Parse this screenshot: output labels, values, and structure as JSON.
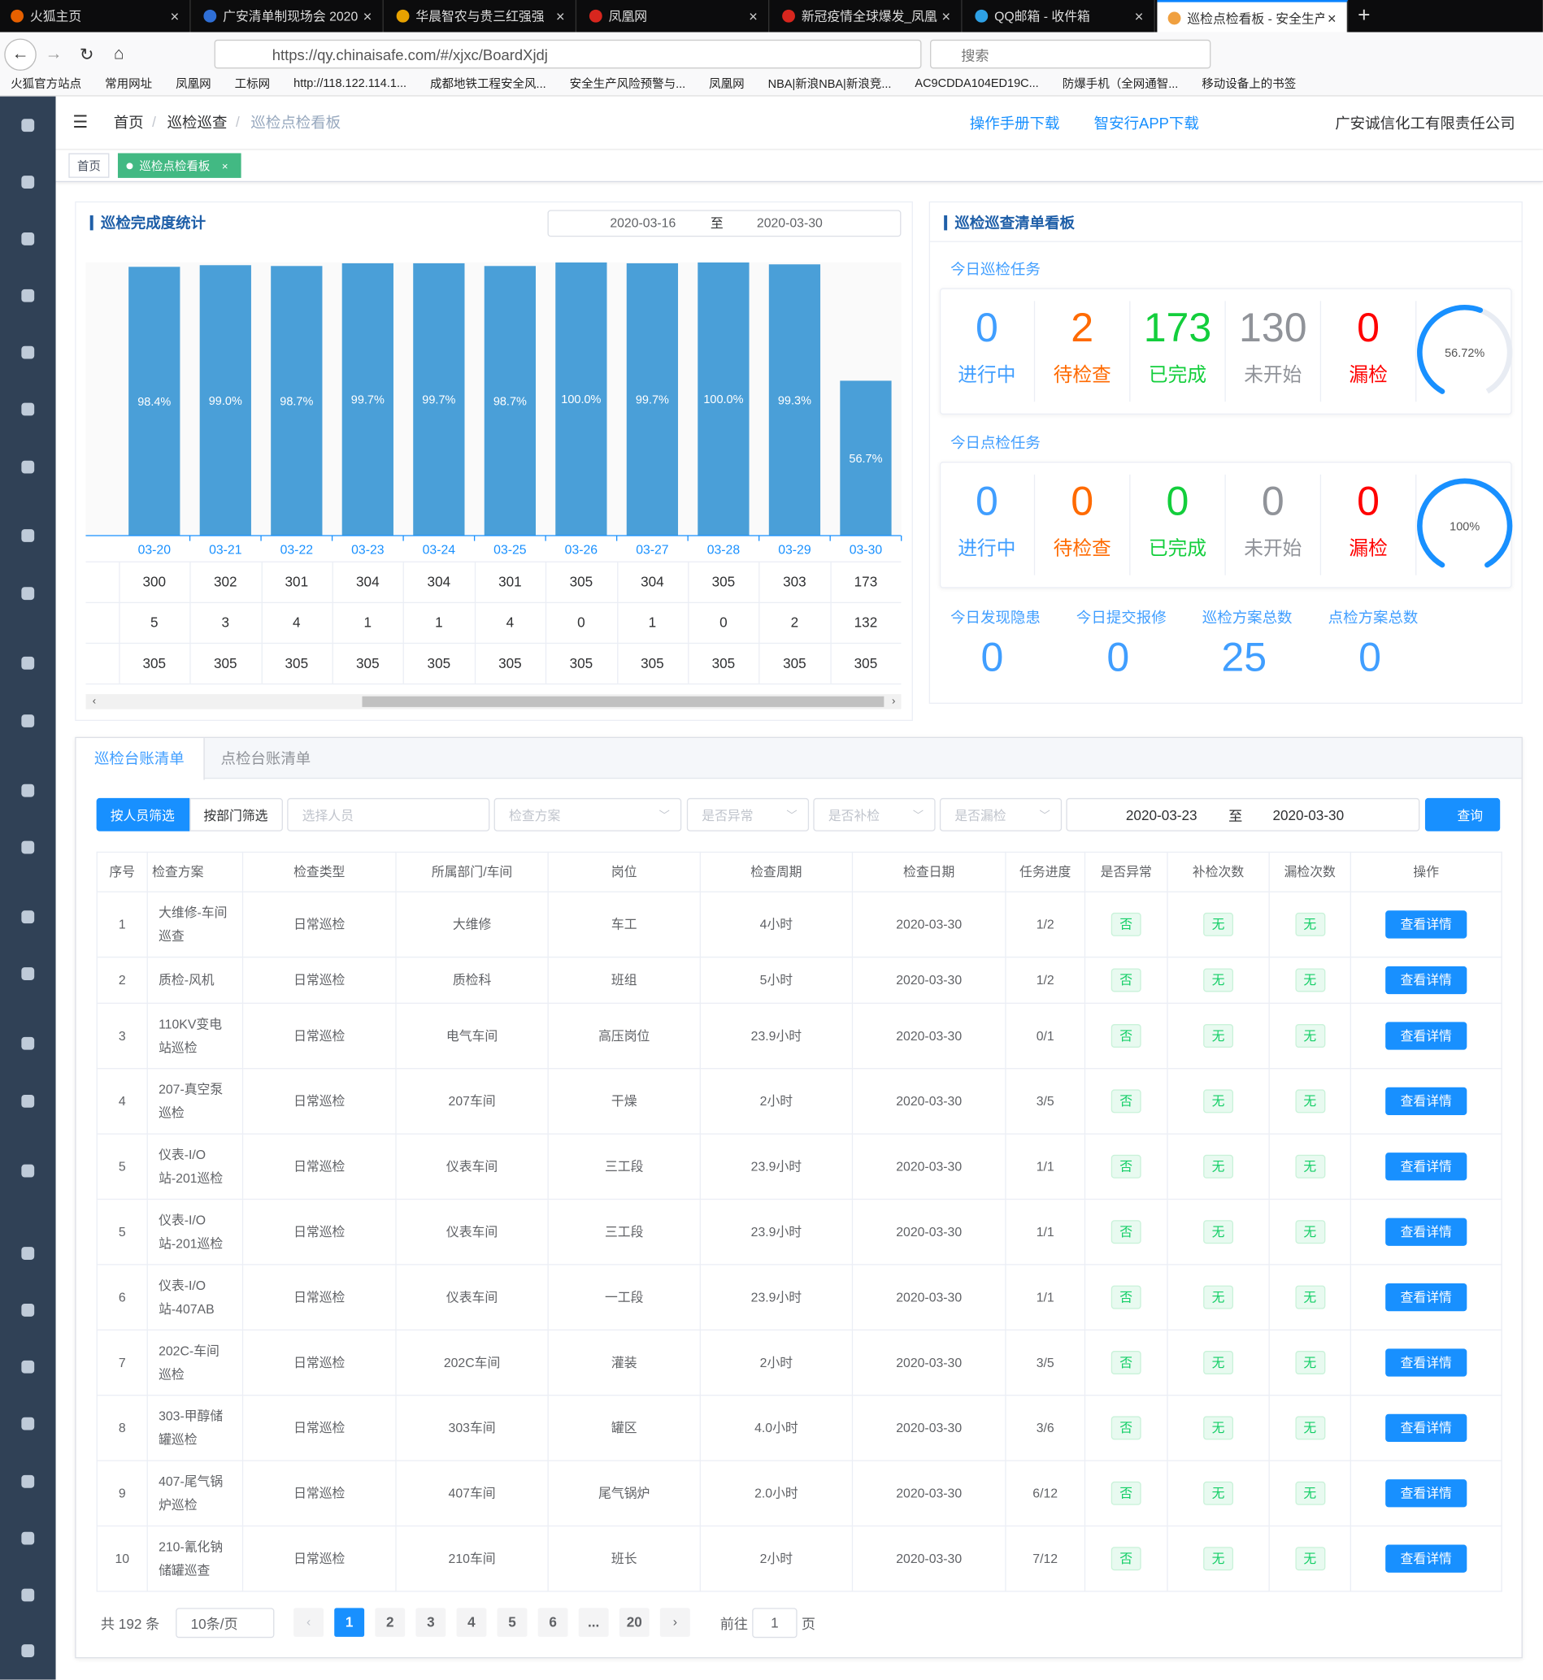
{
  "browser": {
    "tabs": [
      "火狐主页",
      "广安清单制现场会 2020",
      "华晨智农与贵三红强强",
      "凤凰网",
      "新冠疫情全球爆发_凤凰",
      "QQ邮箱 - 收件箱",
      "巡检点检看板 - 安全生产"
    ],
    "url": "https://qy.chinaisafe.com/#/xjxc/BoardXjdj",
    "search": "搜索",
    "bookmarks": [
      "火狐官方站点",
      "常用网址",
      "凤凰网",
      "工标网",
      "http://118.122.114.1...",
      "成都地铁工程安全风...",
      "安全生产风险预警与...",
      "凤凰网",
      "NBA|新浪NBA|新浪竞...",
      "AC9CDDA104ED19C...",
      "防爆手机（全网通智...",
      "移动设备上的书签"
    ]
  },
  "header": {
    "breadcrumb": [
      "首页",
      "巡检巡查",
      "巡检点检看板"
    ],
    "links": [
      "操作手册下载",
      "智安行APP下载"
    ],
    "company": "广安诚信化工有限责任公司",
    "tags": [
      "首页",
      "巡检点检看板"
    ]
  },
  "completion": {
    "title": "巡检完成度统计",
    "date_from": "2020-03-16",
    "date_sep": "至",
    "date_to": "2020-03-30"
  },
  "chart_data": {
    "type": "bar",
    "categories": [
      "03-20",
      "03-21",
      "03-22",
      "03-23",
      "03-24",
      "03-25",
      "03-26",
      "03-27",
      "03-28",
      "03-29",
      "03-30"
    ],
    "values": [
      98.4,
      99.0,
      98.7,
      99.7,
      99.7,
      98.7,
      100.0,
      99.7,
      100.0,
      99.3,
      56.7
    ],
    "value_labels": [
      "98.4%",
      "99.0%",
      "98.7%",
      "99.7%",
      "99.7%",
      "98.7%",
      "100.0%",
      "99.7%",
      "100.0%",
      "99.3%",
      "56.7%"
    ],
    "color": "#4a9fd8",
    "ylim": [
      0,
      100
    ]
  },
  "chart_table": {
    "rows": [
      [
        300,
        302,
        301,
        304,
        304,
        301,
        305,
        304,
        305,
        303,
        173
      ],
      [
        5,
        3,
        4,
        1,
        1,
        4,
        0,
        1,
        0,
        2,
        132
      ],
      [
        305,
        305,
        305,
        305,
        305,
        305,
        305,
        305,
        305,
        305,
        305
      ]
    ]
  },
  "board": {
    "title": "巡检巡查清单看板",
    "patrol": {
      "title": "今日巡检任务",
      "stats": [
        {
          "value": 0,
          "label": "进行中"
        },
        {
          "value": 2,
          "label": "待检查"
        },
        {
          "value": 173,
          "label": "已完成"
        },
        {
          "value": 130,
          "label": "未开始"
        },
        {
          "value": 0,
          "label": "漏检"
        }
      ],
      "gauge_value": 56.72,
      "gauge_label": "56.72%"
    },
    "spot": {
      "title": "今日点检任务",
      "stats": [
        {
          "value": 0,
          "label": "进行中"
        },
        {
          "value": 0,
          "label": "待检查"
        },
        {
          "value": 0,
          "label": "已完成"
        },
        {
          "value": 0,
          "label": "未开始"
        },
        {
          "value": 0,
          "label": "漏检"
        }
      ],
      "gauge_value": 100,
      "gauge_label": "100%"
    },
    "totals": [
      {
        "label": "今日发现隐患",
        "value": 0
      },
      {
        "label": "今日提交报修",
        "value": 0
      },
      {
        "label": "巡检方案总数",
        "value": 25
      },
      {
        "label": "点检方案总数",
        "value": 0
      }
    ]
  },
  "ledger": {
    "tabs": [
      "巡检台账清单",
      "点检台账清单"
    ],
    "filters": {
      "buttons": [
        "按人员筛选",
        "按部门筛选"
      ],
      "placeholders": [
        "选择人员",
        "检查方案",
        "是否异常",
        "是否补检",
        "是否漏检"
      ],
      "date_from": "2020-03-23",
      "date_sep": "至",
      "date_to": "2020-03-30",
      "search": "查询"
    },
    "table": {
      "headers": [
        "序号",
        "检查方案",
        "检查类型",
        "所属部门/车间",
        "岗位",
        "检查周期",
        "检查日期",
        "任务进度",
        "是否异常",
        "补检次数",
        "漏检次数",
        "操作"
      ],
      "rows": [
        [
          "1",
          "大维修-车间巡查",
          "日常巡检",
          "大维修",
          "车工",
          "4小时",
          "2020-03-30",
          "1/2",
          "否",
          "无",
          "无",
          "查看详情"
        ],
        [
          "2",
          "质检-风机",
          "日常巡检",
          "质检科",
          "班组",
          "5小时",
          "2020-03-30",
          "1/2",
          "否",
          "无",
          "无",
          "查看详情"
        ],
        [
          "3",
          "110KV变电站巡检",
          "日常巡检",
          "电气车间",
          "高压岗位",
          "23.9小时",
          "2020-03-30",
          "0/1",
          "否",
          "无",
          "无",
          "查看详情"
        ],
        [
          "4",
          "207-真空泵巡检",
          "日常巡检",
          "207车间",
          "干燥",
          "2小时",
          "2020-03-30",
          "3/5",
          "否",
          "无",
          "无",
          "查看详情"
        ],
        [
          "5",
          "仪表-I/O站-201巡检",
          "日常巡检",
          "仪表车间",
          "三工段",
          "23.9小时",
          "2020-03-30",
          "1/1",
          "否",
          "无",
          "无",
          "查看详情"
        ],
        [
          "5",
          "仪表-I/O站-201巡检",
          "日常巡检",
          "仪表车间",
          "三工段",
          "23.9小时",
          "2020-03-30",
          "1/1",
          "否",
          "无",
          "无",
          "查看详情"
        ],
        [
          "6",
          "仪表-I/O站-407AB",
          "日常巡检",
          "仪表车间",
          "一工段",
          "23.9小时",
          "2020-03-30",
          "1/1",
          "否",
          "无",
          "无",
          "查看详情"
        ],
        [
          "7",
          "202C-车间巡检",
          "日常巡检",
          "202C车间",
          "灌装",
          "2小时",
          "2020-03-30",
          "3/5",
          "否",
          "无",
          "无",
          "查看详情"
        ],
        [
          "8",
          "303-甲醇储罐巡检",
          "日常巡检",
          "303车间",
          "罐区",
          "4.0小时",
          "2020-03-30",
          "3/6",
          "否",
          "无",
          "无",
          "查看详情"
        ],
        [
          "9",
          "407-尾气锅炉巡检",
          "日常巡检",
          "407车间",
          "尾气锅炉",
          "2.0小时",
          "2020-03-30",
          "6/12",
          "否",
          "无",
          "无",
          "查看详情"
        ],
        [
          "10",
          "210-氰化钠储罐巡查",
          "日常巡检",
          "210车间",
          "班长",
          "2小时",
          "2020-03-30",
          "7/12",
          "否",
          "无",
          "无",
          "查看详情"
        ]
      ]
    },
    "pagination": {
      "total": "共 192 条",
      "page_size": "10条/页",
      "pages": [
        "1",
        "2",
        "3",
        "4",
        "5",
        "6",
        "...",
        "20"
      ],
      "goto": "前往",
      "goto_value": "1",
      "goto_unit": "页"
    }
  }
}
